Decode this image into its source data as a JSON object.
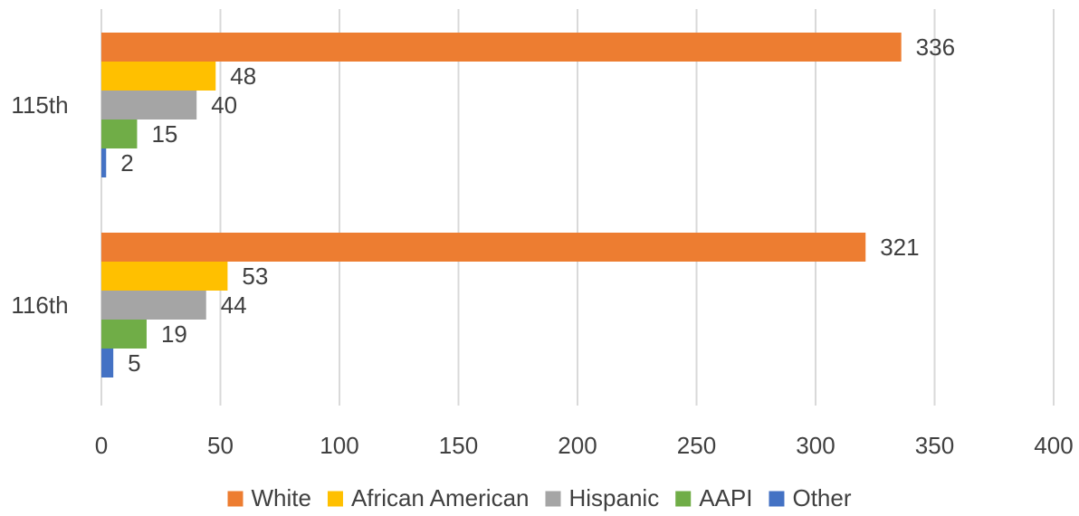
{
  "chart_data": {
    "type": "bar",
    "orientation": "horizontal",
    "categories": [
      "115th",
      "116th"
    ],
    "series": [
      {
        "name": "White",
        "color": "#ED7D31",
        "values": [
          336,
          321
        ]
      },
      {
        "name": "African American",
        "color": "#FFC000",
        "values": [
          48,
          53
        ]
      },
      {
        "name": "Hispanic",
        "color": "#A5A5A5",
        "values": [
          40,
          44
        ]
      },
      {
        "name": "AAPI",
        "color": "#70AD47",
        "values": [
          15,
          19
        ]
      },
      {
        "name": "Other",
        "color": "#4472C4",
        "values": [
          2,
          5
        ]
      }
    ],
    "xlim": [
      0,
      400
    ],
    "xticks": [
      0,
      50,
      100,
      150,
      200,
      250,
      300,
      350,
      400
    ],
    "grid": true,
    "data_labels": true,
    "legend_position": "bottom",
    "title": "",
    "xlabel": "",
    "ylabel": ""
  }
}
